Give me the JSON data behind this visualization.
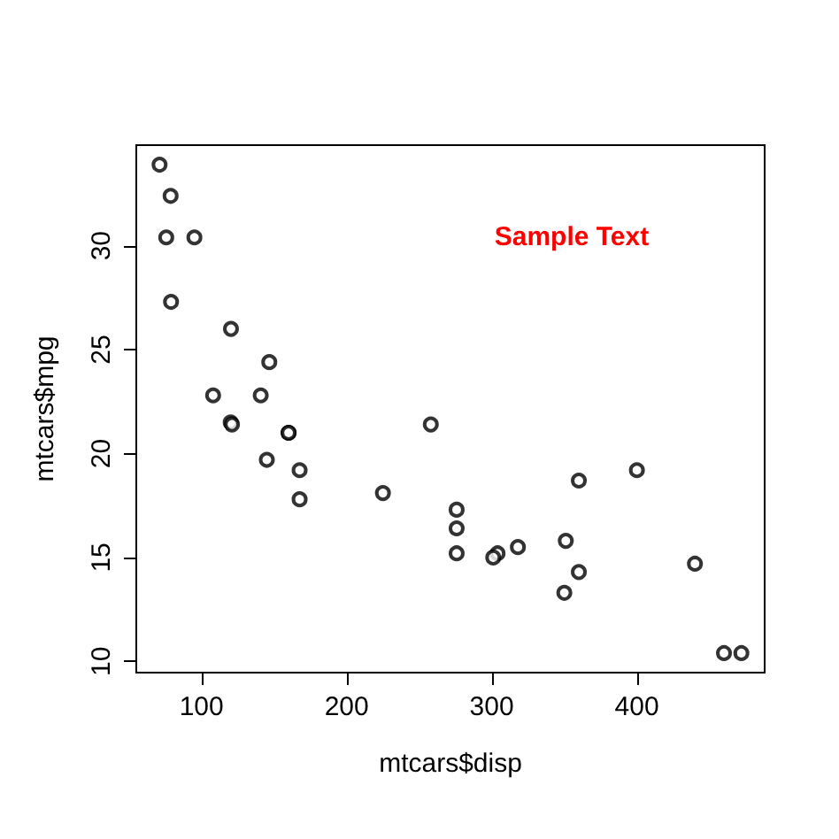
{
  "chart_data": {
    "type": "scatter",
    "xlabel": "mtcars$disp",
    "ylabel": "mtcars$mpg",
    "x": [
      160,
      160,
      108,
      258,
      360,
      225,
      360,
      146.7,
      140.8,
      167.6,
      167.6,
      275.8,
      275.8,
      275.8,
      472,
      460,
      440,
      78.7,
      75.7,
      71.1,
      120.1,
      318,
      304,
      350,
      400,
      79,
      120.3,
      95.1,
      351,
      145,
      301,
      121
    ],
    "values": [
      21.0,
      21.0,
      22.8,
      21.4,
      18.7,
      18.1,
      14.3,
      24.4,
      22.8,
      19.2,
      17.8,
      16.4,
      17.3,
      15.2,
      10.4,
      10.4,
      14.7,
      32.4,
      30.4,
      33.9,
      21.5,
      15.5,
      15.2,
      13.3,
      19.2,
      27.3,
      26.0,
      30.4,
      15.8,
      19.7,
      15.0,
      21.4
    ],
    "color": "#000000",
    "marker": "circle",
    "grid": false,
    "xlim": [
      55.06,
      488.04
    ],
    "xticks": [
      100,
      200,
      300,
      400
    ],
    "ylim": [
      9.46,
      34.84
    ],
    "yticks": [
      10,
      15,
      20,
      25,
      30
    ],
    "annotations": [
      "Sample Text"
    ]
  }
}
